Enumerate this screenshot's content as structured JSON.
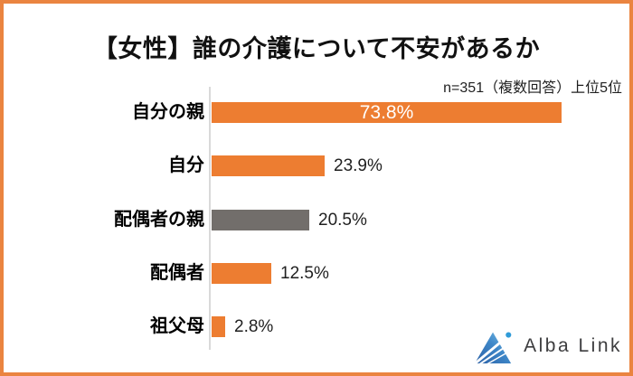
{
  "title": "【女性】誰の介護について不安があるか",
  "note": "n=351（複数回答）上位5位",
  "chart_data": {
    "type": "bar",
    "orientation": "horizontal",
    "title": "【女性】誰の介護について不安があるか",
    "subtitle": "n=351（複数回答）上位5位",
    "categories": [
      "自分の親",
      "自分",
      "配偶者の親",
      "配偶者",
      "祖父母"
    ],
    "values": [
      73.8,
      23.9,
      20.5,
      12.5,
      2.8
    ],
    "value_labels": [
      "73.8%",
      "23.9%",
      "20.5%",
      "12.5%",
      "2.8%"
    ],
    "bar_colors": [
      "#ED7D31",
      "#ED7D31",
      "#726E6B",
      "#ED7D31",
      "#ED7D31"
    ],
    "value_label_positions": [
      "inside",
      "outside",
      "outside",
      "outside",
      "outside"
    ],
    "xlim": [
      0,
      80
    ],
    "grid": false,
    "legend": false,
    "axis_line_color": "#D9D9D9"
  },
  "colors": {
    "accent_orange": "#ED7D31",
    "bar_gray": "#726E6B",
    "frame_border": "#EA8440",
    "logo_blue_dark": "#2B5FA5",
    "logo_blue_light": "#7FC4EA",
    "logo_dot_blue": "#2F9BD8",
    "logo_text": "#3d3d3f"
  },
  "logo": {
    "text": "Alba Link"
  }
}
